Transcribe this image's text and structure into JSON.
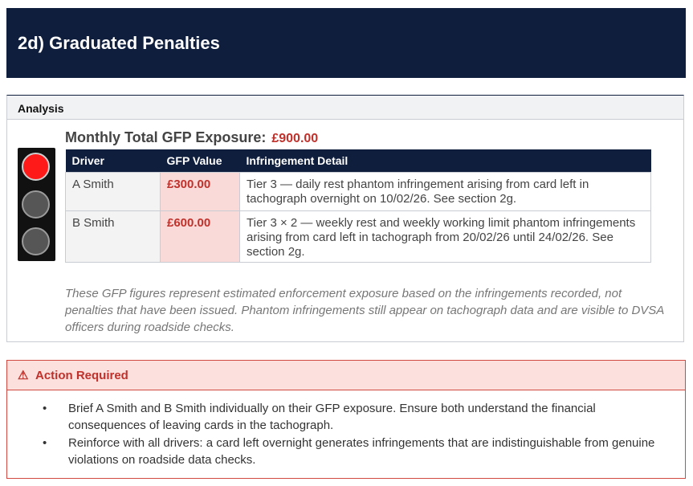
{
  "header": {
    "title": "2d) Graduated Penalties"
  },
  "analysis": {
    "heading": "Analysis",
    "exposure_label": "Monthly Total GFP Exposure:",
    "exposure_amount": "£900.00",
    "status_light": "red",
    "table": {
      "columns": [
        "Driver",
        "GFP Value",
        "Infringement Detail"
      ],
      "rows": [
        {
          "driver": "A Smith",
          "value": "£300.00",
          "detail": "Tier 3 — daily rest phantom infringement arising from card left in tachograph overnight on 10/02/26. See section 2g."
        },
        {
          "driver": "B Smith",
          "value": "£600.00",
          "detail": "Tier 3 × 2 — weekly rest and weekly working limit phantom infringements arising from card left in tachograph from 20/02/26 until 24/02/26. See section 2g."
        }
      ]
    },
    "note": "These GFP figures represent estimated enforcement exposure based on the infringements recorded, not penalties that have been issued. Phantom infringements still appear on tachograph data and are visible to DVSA officers during roadside checks."
  },
  "action": {
    "warning_icon": "⚠",
    "title": "Action Required",
    "items": [
      "Brief A Smith and B Smith individually on their GFP exposure. Ensure both understand the financial consequences of leaving cards in the tachograph.",
      "Reinforce with all drivers: a card left overnight generates infringements that are indistinguishable from genuine violations on roadside data checks."
    ]
  },
  "colors": {
    "navy": "#0f1e3d",
    "accent_red": "#c0312b",
    "value_bg": "#fadad8",
    "action_bg": "#fbe0de"
  }
}
